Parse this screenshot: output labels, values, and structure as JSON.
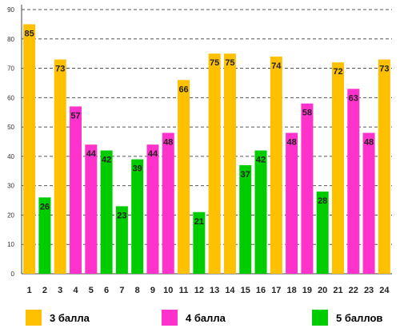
{
  "chart_data": {
    "type": "bar",
    "categories": [
      "1",
      "2",
      "3",
      "4",
      "5",
      "6",
      "7",
      "8",
      "9",
      "10",
      "11",
      "12",
      "13",
      "14",
      "15",
      "16",
      "17",
      "18",
      "19",
      "20",
      "21",
      "22",
      "23",
      "24"
    ],
    "values": [
      85,
      26,
      73,
      57,
      44,
      42,
      23,
      39,
      44,
      48,
      66,
      21,
      75,
      75,
      37,
      42,
      74,
      48,
      58,
      28,
      72,
      63,
      48,
      73
    ],
    "groups": [
      "3 балла",
      "5 баллов",
      "3 балла",
      "4 балла",
      "4 балла",
      "5 баллов",
      "5 баллов",
      "5 баллов",
      "4 балла",
      "4 балла",
      "3 балла",
      "5 баллов",
      "3 балла",
      "3 балла",
      "5 баллов",
      "5 баллов",
      "3 балла",
      "4 балла",
      "4 балла",
      "5 баллов",
      "3 балла",
      "4 балла",
      "4 балла",
      "3 балла"
    ],
    "yticks": [
      0,
      10,
      20,
      30,
      40,
      50,
      60,
      70,
      80,
      90
    ],
    "ylim": [
      0,
      90
    ],
    "grid": true,
    "legend": [
      {
        "name": "3 балла",
        "color": "#FFC000"
      },
      {
        "name": "4 балла",
        "color": "#FF33CC"
      },
      {
        "name": "5 баллов",
        "color": "#00CC00"
      }
    ],
    "legend_position": "bottom"
  }
}
